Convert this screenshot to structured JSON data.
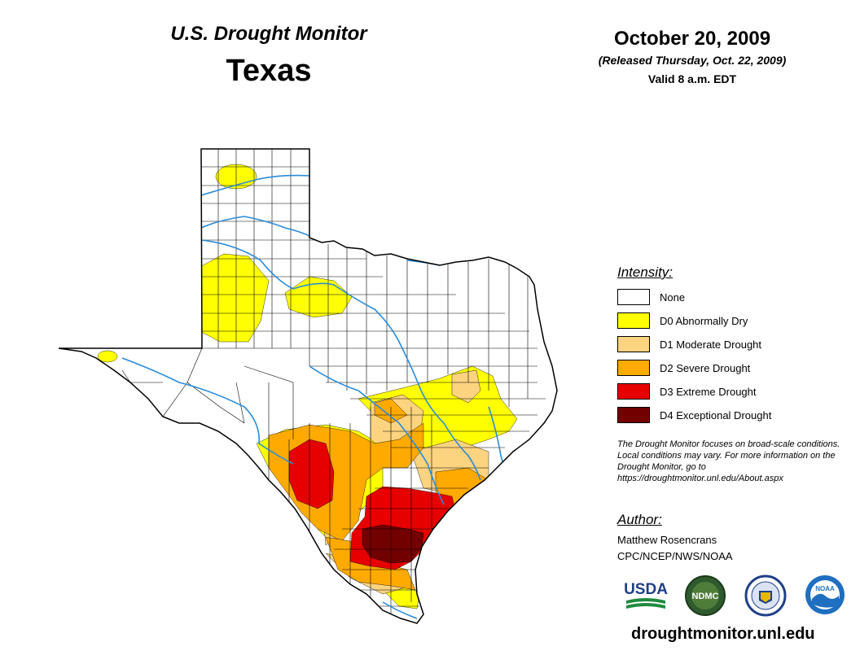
{
  "header": {
    "monitor_title": "U.S. Drought Monitor",
    "state": "Texas",
    "date": "October 20, 2009",
    "released": "(Released Thursday, Oct. 22, 2009)",
    "valid": "Valid 8 a.m. EDT"
  },
  "legend": {
    "title": "Intensity:",
    "items": [
      {
        "label": "None",
        "color": "#ffffff"
      },
      {
        "label": "D0 Abnormally Dry",
        "color": "#ffff00"
      },
      {
        "label": "D1 Moderate Drought",
        "color": "#fcd37f"
      },
      {
        "label": "D2 Severe Drought",
        "color": "#ffaa00"
      },
      {
        "label": "D3 Extreme Drought",
        "color": "#e60000"
      },
      {
        "label": "D4 Exceptional Drought",
        "color": "#730000"
      }
    ]
  },
  "note": "The Drought Monitor focuses on broad-scale conditions. Local conditions may vary. For more information on the Drought Monitor, go to https://droughtmonitor.unl.edu/About.aspx",
  "author": {
    "heading": "Author:",
    "name": "Matthew Rosencrans",
    "org": "CPC/NCEP/NWS/NOAA"
  },
  "logos": {
    "usda": "USDA",
    "ndmc": "NDMC",
    "noaa": "NOAA"
  },
  "footer": {
    "url": "droughtmonitor.unl.edu"
  },
  "colors": {
    "river": "#2a8bd8",
    "county_line": "#000000"
  }
}
